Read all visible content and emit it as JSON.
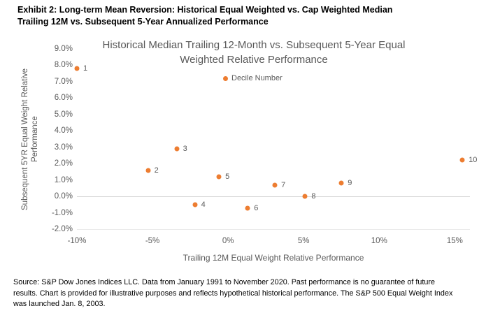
{
  "exhibit_title": {
    "line1": "Exhibit 2: Long-term Mean Reversion: Historical Equal Weighted vs. Cap Weighted Median",
    "line2": "Trailing 12M vs. Subsequent 5-Year Annualized Performance"
  },
  "chart_data": {
    "type": "scatter",
    "title_line1": "Historical Median Trailing 12-Month vs. Subsequent 5-Year Equal",
    "title_line2": "Weighted Relative Performance",
    "xlabel": "Trailing 12M Equal Weight Relative Performance",
    "ylabel_line1": "Subsequent 5YR Equal Weight Relative",
    "ylabel_line2": "Performance",
    "legend": [
      {
        "label": "Decile Number",
        "color": "#ED7D31"
      }
    ],
    "marker_color": "#ED7D31",
    "gridline_color": "#D6D6D6",
    "xlim": [
      -10,
      16
    ],
    "ylim": [
      -2,
      9
    ],
    "x_ticks": [
      {
        "value": -10,
        "label": "-10%"
      },
      {
        "value": -5,
        "label": "-5%"
      },
      {
        "value": 0,
        "label": "0%"
      },
      {
        "value": 5,
        "label": "5%"
      },
      {
        "value": 10,
        "label": "10%"
      },
      {
        "value": 15,
        "label": "15%"
      }
    ],
    "y_ticks": [
      {
        "value": 9,
        "label": "9.0%"
      },
      {
        "value": 8,
        "label": "8.0%"
      },
      {
        "value": 7,
        "label": "7.0%"
      },
      {
        "value": 6,
        "label": "6.0%"
      },
      {
        "value": 5,
        "label": "5.0%"
      },
      {
        "value": 4,
        "label": "4.0%"
      },
      {
        "value": 3,
        "label": "3.0%"
      },
      {
        "value": 2,
        "label": "2.0%"
      },
      {
        "value": 1,
        "label": "1.0%"
      },
      {
        "value": 0,
        "label": "0.0%"
      },
      {
        "value": -1,
        "label": "-1.0%"
      },
      {
        "value": -2,
        "label": "-2.0%"
      }
    ],
    "points": [
      {
        "label": "1",
        "x": -10.0,
        "y": 7.8
      },
      {
        "label": "2",
        "x": -5.3,
        "y": 1.6
      },
      {
        "label": "3",
        "x": -3.4,
        "y": 2.9
      },
      {
        "label": "4",
        "x": -2.2,
        "y": -0.5
      },
      {
        "label": "5",
        "x": -0.6,
        "y": 1.2
      },
      {
        "label": "6",
        "x": 1.3,
        "y": -0.7
      },
      {
        "label": "7",
        "x": 3.1,
        "y": 0.7
      },
      {
        "label": "8",
        "x": 5.1,
        "y": 0.0
      },
      {
        "label": "9",
        "x": 7.5,
        "y": 0.8
      },
      {
        "label": "10",
        "x": 15.5,
        "y": 2.2
      }
    ]
  },
  "footer": {
    "line1": "Source: S&P Dow Jones Indices LLC. Data from January 1991 to November 2020. Past performance is no guarantee of future",
    "line2": "results. Chart is provided for illustrative purposes and reflects hypothetical historical performance. The S&P 500 Equal Weight Index",
    "line3": "was launched Jan. 8, 2003."
  }
}
